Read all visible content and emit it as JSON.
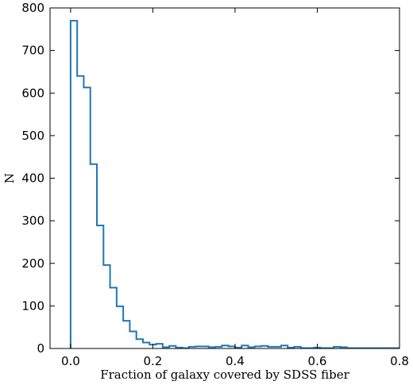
{
  "chart_data": {
    "type": "histogram",
    "xlabel": "Fraction of galaxy covered by SDSS fiber",
    "ylabel": "N",
    "xlim": [
      -0.05,
      0.8
    ],
    "ylim": [
      0,
      800
    ],
    "x_ticks": [
      0.0,
      0.2,
      0.4,
      0.6,
      0.8
    ],
    "x_tick_labels": [
      "0.0",
      "0.2",
      "0.4",
      "0.6",
      "0.8"
    ],
    "y_ticks": [
      0,
      100,
      200,
      300,
      400,
      500,
      600,
      700,
      800
    ],
    "y_tick_labels": [
      "0",
      "100",
      "200",
      "300",
      "400",
      "500",
      "600",
      "700",
      "800"
    ],
    "bin_width": 0.016,
    "bin_start": 0.0,
    "counts": [
      770,
      640,
      613,
      433,
      289,
      196,
      143,
      99,
      65,
      40,
      22,
      14,
      9,
      11,
      3,
      6,
      2,
      1,
      4,
      5,
      5,
      3,
      4,
      7,
      5,
      2,
      7,
      3,
      5,
      6,
      4,
      4,
      7,
      2,
      4,
      1,
      1,
      2,
      1,
      1,
      4,
      3,
      1,
      1,
      1,
      1,
      1,
      1,
      1,
      1
    ],
    "series": [
      {
        "color": "#1f77b4"
      }
    ],
    "grid": false
  }
}
